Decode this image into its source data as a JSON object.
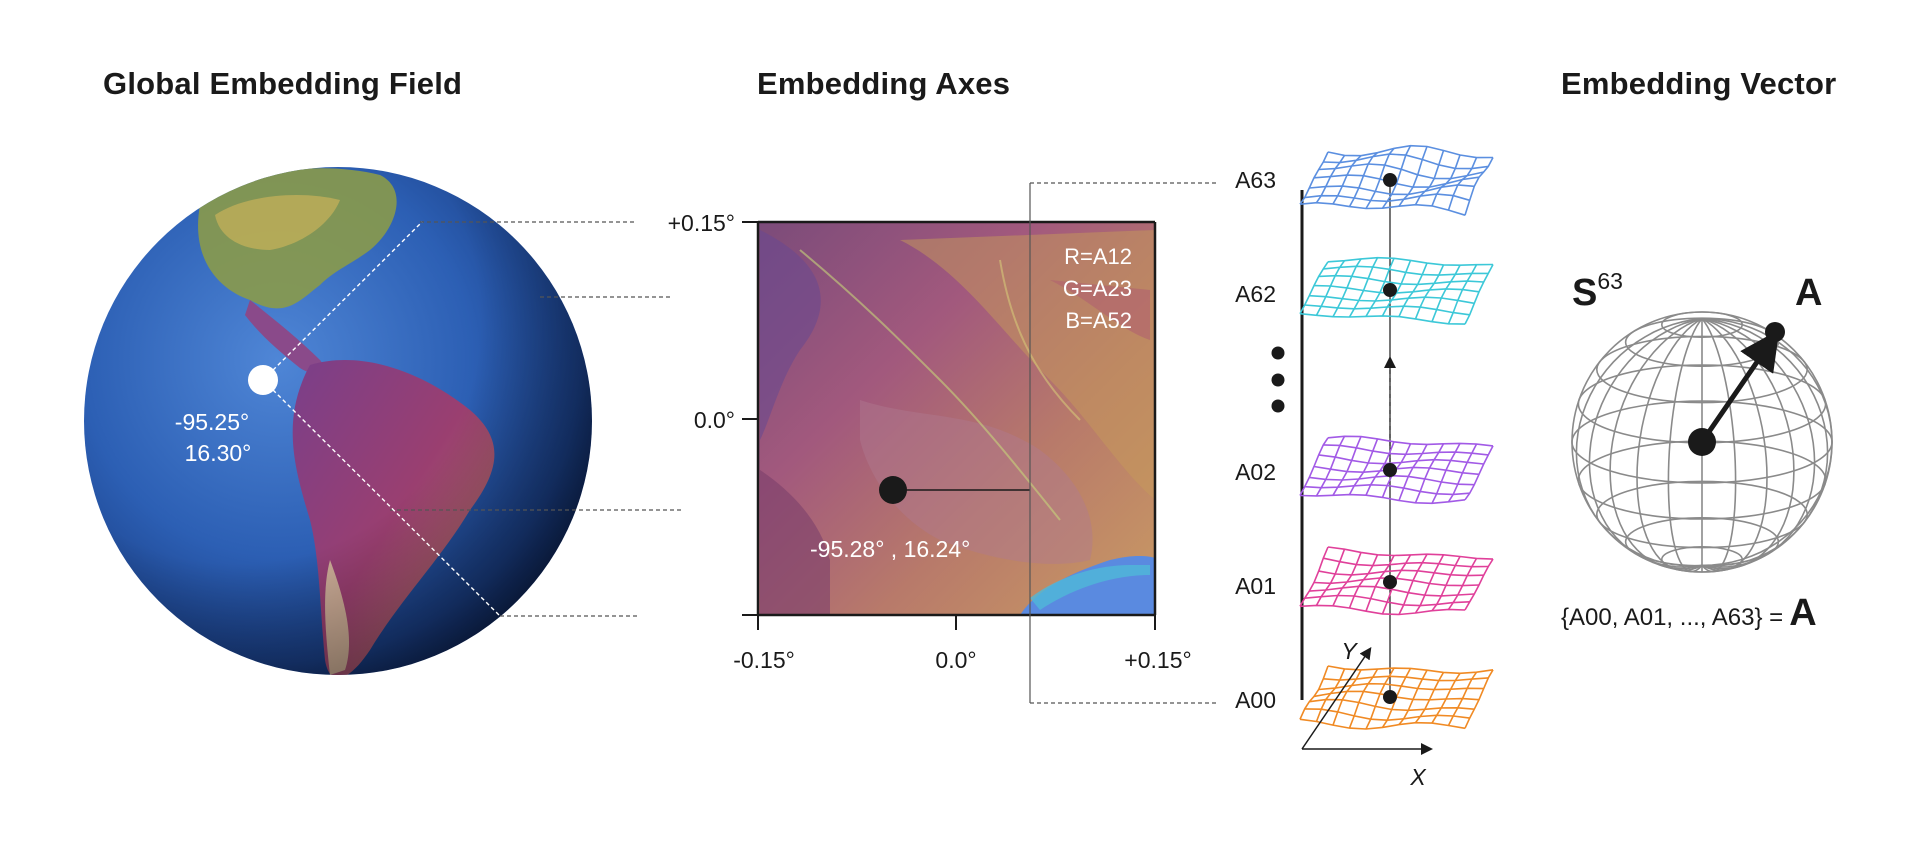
{
  "titles": {
    "field": "Global Embedding Field",
    "axes": "Embedding Axes",
    "vector": "Embedding Vector"
  },
  "globe": {
    "point_label_line1": "-95.25°",
    "point_label_line2": "16.30°"
  },
  "tile": {
    "x_ticks": [
      "-0.15°",
      "0.0°",
      "+0.15°"
    ],
    "y_ticks": [
      "+0.15°",
      "0.0°"
    ],
    "rgb_mapping": [
      "R=A12",
      "G=A23",
      "B=A52"
    ],
    "point_label": "-95.28° , 16.24°"
  },
  "layers": {
    "labels": [
      "A63",
      "A62",
      "A02",
      "A01",
      "A00"
    ],
    "colors": [
      "#5b8fe0",
      "#3cc8d8",
      "#a25ae6",
      "#e0409a",
      "#f08a24"
    ],
    "axis_x": "X",
    "axis_y": "Y"
  },
  "vector": {
    "sphere_label": "S",
    "sphere_exponent": "63",
    "vector_label": "A",
    "formula_left": "{A00, A01, ..., A63} =",
    "formula_right": "A"
  }
}
